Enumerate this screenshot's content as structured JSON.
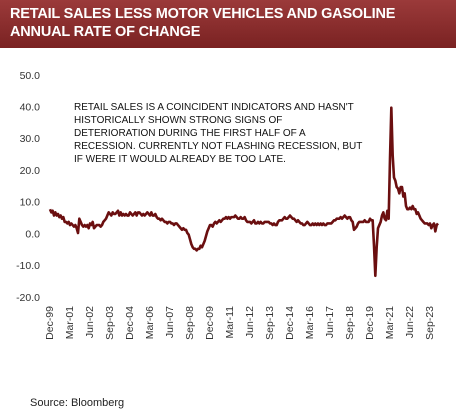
{
  "chart_data": {
    "type": "line",
    "title": "RETAIL SALES LESS MOTOR VEHICLES AND GASOLINE",
    "subtitle": "ANNUAL RATE OF CHANGE",
    "annotation": "RETAIL SALES IS A COINCIDENT INDICATORS AND HASN'T HISTORICALLY SHOWN STRONG SIGNS OF DETERIORATION DURING THE FIRST HALF OF A RECESSION. CURRENTLY NOT FLASHING RECESSION, BUT IF WERE IT WOULD ALREADY BE TOO LATE.",
    "source": "Source:  Bloomberg",
    "color": "#6b0f10",
    "ylim": [
      -20,
      50
    ],
    "yticks": [
      {
        "value": -20,
        "label": "-20.0"
      },
      {
        "value": -10,
        "label": "-10.0"
      },
      {
        "value": 0,
        "label": "0.0"
      },
      {
        "value": 10,
        "label": "10.0"
      },
      {
        "value": 20,
        "label": "20.0"
      },
      {
        "value": 30,
        "label": "30.0"
      },
      {
        "value": 40,
        "label": "40.0"
      },
      {
        "value": 50,
        "label": "50.0"
      }
    ],
    "categories": [
      "Dec-99",
      null,
      null,
      null,
      null,
      null,
      null,
      null,
      null,
      null,
      null,
      null,
      null,
      null,
      null,
      "Mar-01",
      null,
      null,
      null,
      null,
      null,
      null,
      null,
      null,
      null,
      null,
      null,
      null,
      null,
      null,
      "Jun-02",
      null,
      null,
      null,
      null,
      null,
      null,
      null,
      null,
      null,
      null,
      null,
      null,
      null,
      null,
      "Sep-03",
      null,
      null,
      null,
      null,
      null,
      null,
      null,
      null,
      null,
      null,
      null,
      null,
      null,
      null,
      "Dec-04",
      null,
      null,
      null,
      null,
      null,
      null,
      null,
      null,
      null,
      null,
      null,
      null,
      null,
      null,
      "Mar-06",
      null,
      null,
      null,
      null,
      null,
      null,
      null,
      null,
      null,
      null,
      null,
      null,
      null,
      null,
      "Jun-07",
      null,
      null,
      null,
      null,
      null,
      null,
      null,
      null,
      null,
      null,
      null,
      null,
      null,
      null,
      "Sep-08",
      null,
      null,
      null,
      null,
      null,
      null,
      null,
      null,
      null,
      null,
      null,
      null,
      null,
      null,
      "Dec-09",
      null,
      null,
      null,
      null,
      null,
      null,
      null,
      null,
      null,
      null,
      null,
      null,
      null,
      null,
      "Mar-11",
      null,
      null,
      null,
      null,
      null,
      null,
      null,
      null,
      null,
      null,
      null,
      null,
      null,
      null,
      "Jun-12",
      null,
      null,
      null,
      null,
      null,
      null,
      null,
      null,
      null,
      null,
      null,
      null,
      null,
      null,
      "Sep-13",
      null,
      null,
      null,
      null,
      null,
      null,
      null,
      null,
      null,
      null,
      null,
      null,
      null,
      null,
      "Dec-14",
      null,
      null,
      null,
      null,
      null,
      null,
      null,
      null,
      null,
      null,
      null,
      null,
      null,
      null,
      "Mar-16",
      null,
      null,
      null,
      null,
      null,
      null,
      null,
      null,
      null,
      null,
      null,
      null,
      null,
      null,
      "Jun-17",
      null,
      null,
      null,
      null,
      null,
      null,
      null,
      null,
      null,
      null,
      null,
      null,
      null,
      null,
      "Sep-18",
      null,
      null,
      null,
      null,
      null,
      null,
      null,
      null,
      null,
      null,
      null,
      null,
      null,
      null,
      "Dec-19",
      null,
      null,
      null,
      null,
      null,
      null,
      null,
      null,
      null,
      null,
      null,
      null,
      null,
      null,
      "Mar-21",
      null,
      null,
      null,
      null,
      null,
      null,
      null,
      null,
      null,
      null,
      null,
      null,
      null,
      null,
      "Jun-22",
      null,
      null,
      null,
      null,
      null,
      null,
      null,
      null,
      null,
      null,
      null,
      null,
      null,
      null,
      "Sep-23",
      null,
      null,
      null,
      null,
      null,
      null
    ],
    "values": [
      8,
      7,
      7.5,
      6,
      7,
      6,
      6.5,
      5.5,
      6,
      5,
      5.5,
      4,
      4,
      3.5,
      4,
      3,
      3.5,
      3,
      2.5,
      3,
      2,
      0.5,
      5,
      4,
      3,
      2.5,
      3,
      2.5,
      3,
      2,
      3.5,
      3,
      4,
      2,
      2.5,
      3,
      3,
      3,
      2.5,
      3,
      4,
      4.5,
      5,
      6,
      7,
      6.5,
      6,
      7,
      6.5,
      6.5,
      7,
      7.5,
      6,
      7,
      6,
      6.5,
      6,
      6.5,
      6,
      6,
      7,
      6.5,
      6,
      6.5,
      7,
      6,
      7,
      7,
      6.5,
      6,
      6.5,
      6,
      6.5,
      7,
      6.5,
      6,
      7,
      6,
      6,
      6.5,
      5.5,
      5,
      5,
      4.5,
      5,
      4.5,
      4,
      4,
      3.5,
      4,
      4,
      3.5,
      3.5,
      3,
      3.5,
      3.5,
      3,
      2.5,
      2,
      1.5,
      2,
      1.5,
      1.5,
      0.5,
      0,
      -1.5,
      -3,
      -4,
      -4.5,
      -4.5,
      -5,
      -4.5,
      -4.5,
      -3.5,
      -4,
      -3,
      -2,
      -0.5,
      1,
      2,
      3,
      3,
      2.5,
      3.5,
      4,
      3.5,
      4,
      4.5,
      4,
      4.5,
      5,
      5,
      5.5,
      5,
      5.5,
      5,
      5.5,
      5.5,
      5.5,
      6,
      5.5,
      5,
      5,
      5.5,
      5,
      5,
      5.5,
      4.5,
      4,
      4,
      4,
      3.5,
      4,
      4.5,
      3.5,
      3.5,
      4,
      3.5,
      4,
      3.5,
      3.5,
      4,
      4,
      4,
      4,
      3.5,
      3.5,
      3,
      3.5,
      3,
      3,
      4,
      4.5,
      4.5,
      4.5,
      5,
      5.5,
      5,
      5,
      5.5,
      6,
      5.5,
      5,
      5,
      4.5,
      4,
      4.5,
      4,
      3.5,
      3.5,
      3,
      3,
      3.5,
      4,
      3.5,
      3,
      3,
      3.5,
      3,
      3.5,
      3,
      3.5,
      3,
      3.5,
      3,
      3.5,
      3,
      3,
      3.5,
      3.5,
      3.5,
      3.5,
      4,
      4.5,
      4.5,
      5,
      5,
      5,
      5.5,
      5,
      5.5,
      6,
      5.5,
      5,
      5.5,
      5.5,
      4.5,
      4,
      1.5,
      2,
      2.5,
      3.5,
      4,
      4,
      4,
      4,
      4.5,
      4,
      4,
      4,
      5,
      4.5,
      4.5,
      -3.5,
      -13,
      -4,
      2,
      3,
      4,
      6,
      7,
      5,
      4.5,
      7.5,
      5,
      24,
      40,
      25,
      18,
      17,
      15,
      14.5,
      13,
      15,
      15,
      12,
      13,
      9,
      8,
      8,
      8.5,
      8,
      9,
      8,
      8,
      6.5,
      7,
      6,
      5,
      4.5,
      4,
      3.5,
      3.5,
      3.5,
      3,
      3.5,
      2,
      3,
      3.5,
      1,
      3,
      3.5
    ]
  }
}
